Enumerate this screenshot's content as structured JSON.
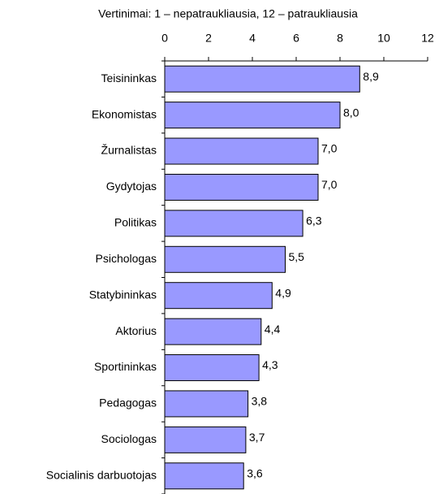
{
  "chart_data": {
    "type": "bar",
    "orientation": "horizontal",
    "title": "Vertinimai: 1 – nepatraukliausia, 12 – patraukliausia",
    "categories": [
      "Teisininkas",
      "Ekonomistas",
      "Žurnalistas",
      "Gydytojas",
      "Politikas",
      "Psichologas",
      "Statybininkas",
      "Aktorius",
      "Sportininkas",
      "Pedagogas",
      "Sociologas",
      "Socialinis darbuotojas"
    ],
    "values": [
      8.9,
      8.0,
      7.0,
      7.0,
      6.3,
      5.5,
      4.9,
      4.4,
      4.3,
      3.8,
      3.7,
      3.6
    ],
    "value_labels": [
      "8,9",
      "8,0",
      "7,0",
      "7,0",
      "6,3",
      "5,5",
      "4,9",
      "4,4",
      "4,3",
      "3,8",
      "3,7",
      "3,6"
    ],
    "color": "#9999ff",
    "xlim": [
      0,
      12
    ],
    "xticks": [
      0,
      2,
      4,
      6,
      8,
      10,
      12
    ]
  }
}
